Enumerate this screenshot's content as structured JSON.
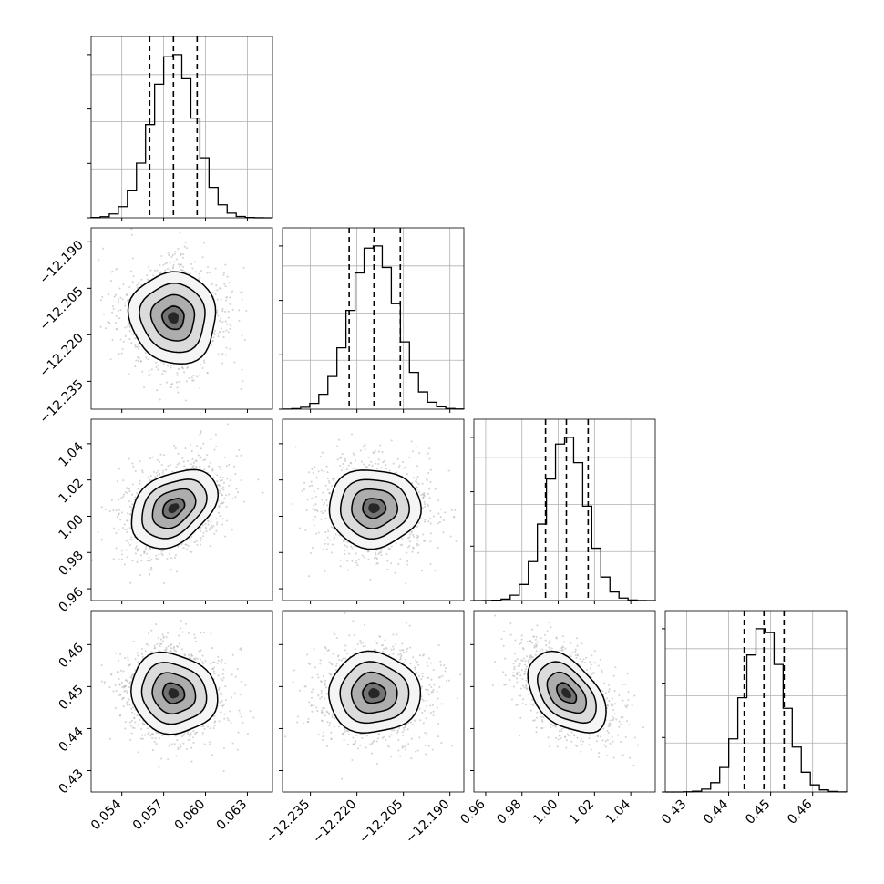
{
  "chart_data": {
    "type": "corner",
    "parameters": [
      {
        "range": [
          0.0518,
          0.0648
        ],
        "ticks": [
          0.054,
          0.057,
          0.06,
          0.063
        ],
        "tick_labels": [
          "0.054",
          "0.057",
          "0.060",
          "0.063"
        ],
        "mean": 0.0577,
        "sd": 0.00155,
        "quantiles": [
          0.056,
          0.0577,
          0.0594
        ]
      },
      {
        "range": [
          -12.244,
          -12.1855
        ],
        "ticks": [
          -12.235,
          -12.22,
          -12.205,
          -12.19
        ],
        "tick_labels": [
          "−12.235",
          "−12.220",
          "−12.205",
          "−12.190"
        ],
        "mean": -12.2145,
        "sd": 0.0074,
        "quantiles": [
          -12.2225,
          -12.2145,
          -12.206
        ]
      },
      {
        "range": [
          0.9535,
          1.0535
        ],
        "ticks": [
          0.96,
          0.98,
          1.0,
          1.02,
          1.04
        ],
        "tick_labels": [
          "0.96",
          "0.98",
          "1.00",
          "1.02",
          "1.04"
        ],
        "mean": 1.0045,
        "sd": 0.0108,
        "quantiles": [
          0.993,
          1.0045,
          1.0165
        ]
      },
      {
        "range": [
          0.4249,
          0.4681
        ],
        "ticks": [
          0.43,
          0.44,
          0.45,
          0.46
        ],
        "tick_labels": [
          "0.43",
          "0.44",
          "0.45",
          "0.46"
        ],
        "mean": 0.4484,
        "sd": 0.0048,
        "quantiles": [
          0.4437,
          0.4484,
          0.4532
        ]
      }
    ],
    "correlations": [
      [
        1,
        -0.05,
        0.35,
        -0.1
      ],
      [
        -0.05,
        1,
        0.0,
        0.0
      ],
      [
        0.35,
        0.0,
        1,
        -0.45
      ],
      [
        -0.1,
        0.0,
        -0.45,
        1
      ]
    ],
    "grid": true,
    "contour_levels": [
      "0.5",
      "1.0",
      "1.5",
      "2.0"
    ],
    "colors": {
      "hist": "#000000",
      "scatter": "#b0b0b0",
      "contour": "#000000",
      "density": "#000000",
      "grid": "#b0b0b0"
    }
  }
}
